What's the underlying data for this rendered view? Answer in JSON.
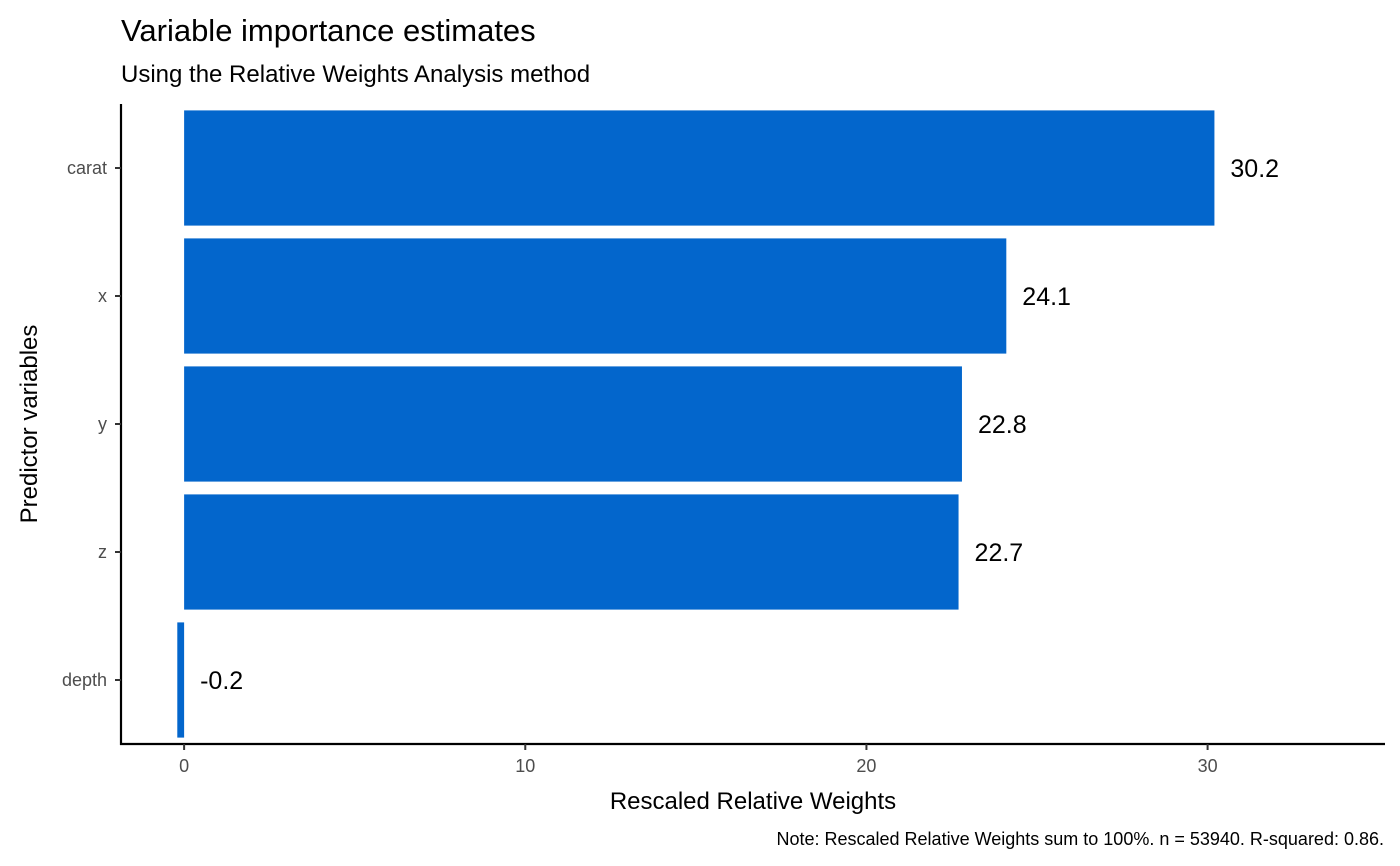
{
  "chart_data": {
    "type": "bar",
    "orientation": "horizontal",
    "title": "Variable importance estimates",
    "subtitle": "Using the Relative Weights Analysis method",
    "xlabel": "Rescaled Relative Weights",
    "ylabel": "Predictor variables",
    "caption": "Note: Rescaled Relative Weights sum to 100%. n = 53940. R-squared: 0.86.",
    "categories": [
      "carat",
      "x",
      "y",
      "z",
      "depth"
    ],
    "values": [
      30.2,
      24.1,
      22.8,
      22.7,
      -0.2
    ],
    "data_labels": [
      "30.2",
      "24.1",
      "22.8",
      "22.7",
      "-0.2"
    ],
    "xlim": [
      -1.85,
      35.2
    ],
    "xticks": [
      0,
      10,
      20,
      30
    ],
    "xtick_labels": [
      "0",
      "10",
      "20",
      "30"
    ],
    "bar_color": "#0366CC",
    "grid": false
  }
}
